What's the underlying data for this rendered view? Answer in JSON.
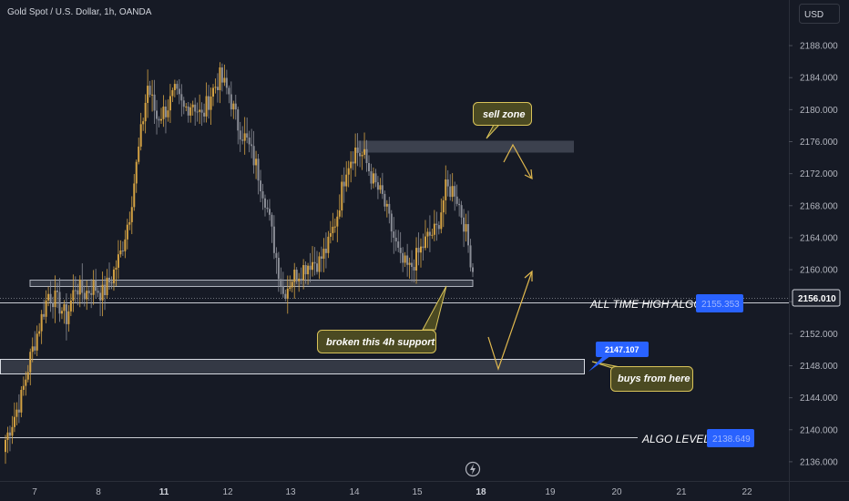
{
  "header": {
    "title": "Gold Spot / U.S. Dollar, 1h, OANDA",
    "currency_button": "USD"
  },
  "colors": {
    "background": "#161a25",
    "up_candle": "#d4a243",
    "down_candle": "#8a8d96",
    "zone_fill": "#4a4f5c",
    "callout_fill": "#4b4a22",
    "callout_stroke": "#d9c35a",
    "arrow": "#e0b84e",
    "badge_blue": "#2962ff"
  },
  "chart_data": {
    "type": "candlestick",
    "y_axis": {
      "ticks": [
        "2136.000",
        "2140.000",
        "2144.000",
        "2148.000",
        "2152.000",
        "2156.000",
        "2160.000",
        "2164.000",
        "2168.000",
        "2172.000",
        "2176.000",
        "2180.000",
        "2184.000",
        "2188.000"
      ],
      "range": [
        2133.6,
        2193.7
      ]
    },
    "x_axis": {
      "ticks": [
        {
          "label": "7",
          "bold": false
        },
        {
          "label": "8",
          "bold": false
        },
        {
          "label": "11",
          "bold": true
        },
        {
          "label": "12",
          "bold": false
        },
        {
          "label": "13",
          "bold": false
        },
        {
          "label": "14",
          "bold": false
        },
        {
          "label": "15",
          "bold": false
        },
        {
          "label": "18",
          "bold": true
        },
        {
          "label": "19",
          "bold": false
        },
        {
          "label": "20",
          "bold": false
        },
        {
          "label": "21",
          "bold": false
        },
        {
          "label": "22",
          "bold": false
        }
      ]
    },
    "current_price": "2156.010",
    "anchors": [
      [
        0,
        2138,
        2141
      ],
      [
        4,
        2141,
        2144
      ],
      [
        8,
        2144,
        2149
      ],
      [
        12,
        2149,
        2153
      ],
      [
        16,
        2153,
        2157
      ],
      [
        20,
        2157,
        2156
      ],
      [
        24,
        2156,
        2154
      ],
      [
        28,
        2154,
        2158
      ],
      [
        32,
        2158,
        2157
      ],
      [
        36,
        2157,
        2158
      ],
      [
        40,
        2158,
        2157
      ],
      [
        44,
        2157,
        2159
      ],
      [
        48,
        2159,
        2162
      ],
      [
        52,
        2162,
        2167
      ],
      [
        56,
        2167,
        2175
      ],
      [
        60,
        2175,
        2183
      ],
      [
        64,
        2183,
        2179
      ],
      [
        68,
        2179,
        2180
      ],
      [
        72,
        2180,
        2182
      ],
      [
        76,
        2182,
        2180
      ],
      [
        80,
        2180,
        2181
      ],
      [
        84,
        2181,
        2179
      ],
      [
        88,
        2179,
        2182
      ],
      [
        92,
        2182,
        2184
      ],
      [
        96,
        2184,
        2182
      ],
      [
        100,
        2182,
        2178
      ],
      [
        104,
        2178,
        2176
      ],
      [
        108,
        2176,
        2173
      ],
      [
        112,
        2173,
        2169
      ],
      [
        116,
        2169,
        2163
      ],
      [
        120,
        2163,
        2157
      ],
      [
        124,
        2157,
        2159
      ],
      [
        128,
        2159,
        2160
      ],
      [
        132,
        2160,
        2161
      ],
      [
        136,
        2161,
        2161
      ],
      [
        140,
        2161,
        2163
      ],
      [
        144,
        2163,
        2167
      ],
      [
        148,
        2167,
        2173
      ],
      [
        152,
        2173,
        2175
      ],
      [
        156,
        2175,
        2174
      ],
      [
        160,
        2174,
        2171
      ],
      [
        164,
        2171,
        2169
      ],
      [
        168,
        2169,
        2165
      ],
      [
        172,
        2165,
        2161
      ],
      [
        176,
        2161,
        2160
      ],
      [
        180,
        2160,
        2162
      ],
      [
        184,
        2162,
        2164
      ],
      [
        188,
        2164,
        2165
      ],
      [
        192,
        2165,
        2170
      ],
      [
        196,
        2170,
        2170
      ],
      [
        200,
        2170,
        2166
      ],
      [
        204,
        2166,
        2160
      ],
      [
        208,
        2160,
        2157
      ]
    ]
  },
  "zones": {
    "sell_zone_label": "sell zone",
    "support_label": "broken this 4h support",
    "buy_label": "buys from here"
  },
  "levels": {
    "ath_label": "ALL TIME HIGH ALGO",
    "ath_value": "2155.353",
    "algo_label": "ALGO LEVEL",
    "algo_value": "2138.649",
    "buy_badge": "2147.107"
  }
}
